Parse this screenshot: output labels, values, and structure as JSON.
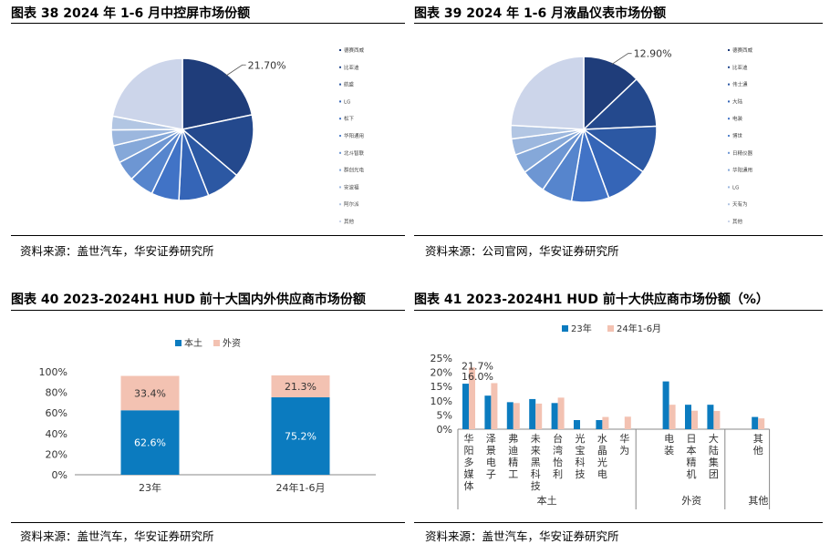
{
  "panels": {
    "p38": {
      "title": "图表 38 2024 年 1-6 月中控屏市场份额",
      "source": "资料来源：盖世汽车，华安证券研究所"
    },
    "p39": {
      "title": "图表 39 2024 年 1-6 月液晶仪表市场份额",
      "source": "资料来源：公司官网，华安证券研究所"
    },
    "p40": {
      "title": "图表 40 2023-2024H1 HUD 前十大国内外供应商市场份额",
      "source": "资料来源：盖世汽车，华安证券研究所"
    },
    "p41": {
      "title": "图表 41 2023-2024H1 HUD 前十大供应商市场份额（%）",
      "source": "资料来源：盖世汽车，华安证券研究所"
    }
  },
  "chart_data": [
    {
      "id": "p38",
      "type": "pie",
      "labels": [
        "德赛西威",
        "比亚迪",
        "航盛",
        "LG",
        "松下",
        "华阳通用",
        "北斗智联",
        "群创光电",
        "安波福",
        "阿尔派",
        "其他"
      ],
      "values": [
        21.7,
        14.5,
        7.8,
        6.8,
        6.3,
        5.6,
        4.6,
        4.0,
        3.6,
        3.1,
        22.0
      ],
      "data_labels": [
        "21.70%"
      ],
      "colors": [
        "#1f3d7a",
        "#24498d",
        "#2c58a3",
        "#3565b7",
        "#4173c6",
        "#5685cd",
        "#6d96d3",
        "#85a8d9",
        "#9cb7de",
        "#b2c6e3",
        "#ccd5ea"
      ],
      "legend_position": "right"
    },
    {
      "id": "p39",
      "type": "pie",
      "labels": [
        "德赛西威",
        "比亚迪",
        "伟士通",
        "大陆",
        "电装",
        "博世",
        "日精仪器",
        "华阳通用",
        "LG",
        "天有为",
        "其他"
      ],
      "values": [
        12.9,
        11.4,
        10.6,
        9.5,
        8.3,
        6.8,
        5.5,
        4.3,
        3.6,
        3.0,
        24.1
      ],
      "data_labels": [
        "12.90%"
      ],
      "colors": [
        "#1f3d7a",
        "#24498d",
        "#2c58a3",
        "#3565b7",
        "#4173c6",
        "#5685cd",
        "#6d96d3",
        "#85a8d9",
        "#9cb7de",
        "#b2c6e3",
        "#ccd5ea"
      ],
      "legend_position": "right"
    },
    {
      "id": "p40",
      "type": "bar",
      "stacked": true,
      "categories": [
        "23年",
        "24年1-6月"
      ],
      "series": [
        {
          "name": "本土",
          "values": [
            62.6,
            75.2
          ],
          "color": "#0b7bbf",
          "labels": [
            "62.6%",
            "75.2%"
          ]
        },
        {
          "name": "外资",
          "values": [
            33.4,
            21.3
          ],
          "color": "#f3c2b2",
          "labels": [
            "33.4%",
            "21.3%"
          ]
        }
      ],
      "y_ticks": [
        "0%",
        "20%",
        "40%",
        "60%",
        "80%",
        "100%"
      ],
      "ylim": [
        0,
        100
      ],
      "legend_position": "top"
    },
    {
      "id": "p41",
      "type": "bar",
      "categories": [
        "华阳多媒体",
        "泽景电子",
        "弗迪精工",
        "未来黑科技",
        "台湾怡利",
        "光宝科技",
        "水晶光电",
        "华为",
        "电装",
        "日本精机",
        "大陆集团",
        "其他"
      ],
      "category_chars": [
        [
          "华",
          "阳",
          "多",
          "媒",
          "体"
        ],
        [
          "泽",
          "景",
          "电",
          "子"
        ],
        [
          "弗",
          "迪",
          "精",
          "工"
        ],
        [
          "未",
          "来",
          "黑",
          "科",
          "技"
        ],
        [
          "台",
          "湾",
          "怡",
          "利"
        ],
        [
          "光",
          "宝",
          "科",
          "技"
        ],
        [
          "水",
          "晶",
          "光",
          "电"
        ],
        [
          "华",
          "为"
        ],
        [
          "电",
          "装"
        ],
        [
          "日",
          "本",
          "精",
          "机"
        ],
        [
          "大",
          "陆",
          "集",
          "团"
        ],
        [
          "其",
          "他"
        ]
      ],
      "series": [
        {
          "name": "23年",
          "color": "#0b7bbf",
          "values": [
            16.0,
            11.8,
            9.5,
            10.6,
            9.2,
            3.2,
            3.2,
            0.0,
            16.8,
            8.6,
            8.6,
            4.3
          ]
        },
        {
          "name": "24年1-6月",
          "color": "#f3c2b2",
          "values": [
            21.7,
            16.2,
            9.2,
            9.0,
            11.1,
            0.0,
            4.3,
            4.4,
            8.6,
            6.5,
            6.4,
            3.8
          ]
        }
      ],
      "data_labels": [
        "21.7%",
        "16.0%"
      ],
      "groups": [
        {
          "label": "本土"
        },
        {
          "label": "外资"
        },
        {
          "label": "其他"
        }
      ],
      "y_ticks": [
        "0%",
        "5%",
        "10%",
        "15%",
        "20%",
        "25%"
      ],
      "ylim": [
        0,
        25
      ],
      "legend_position": "top"
    }
  ]
}
